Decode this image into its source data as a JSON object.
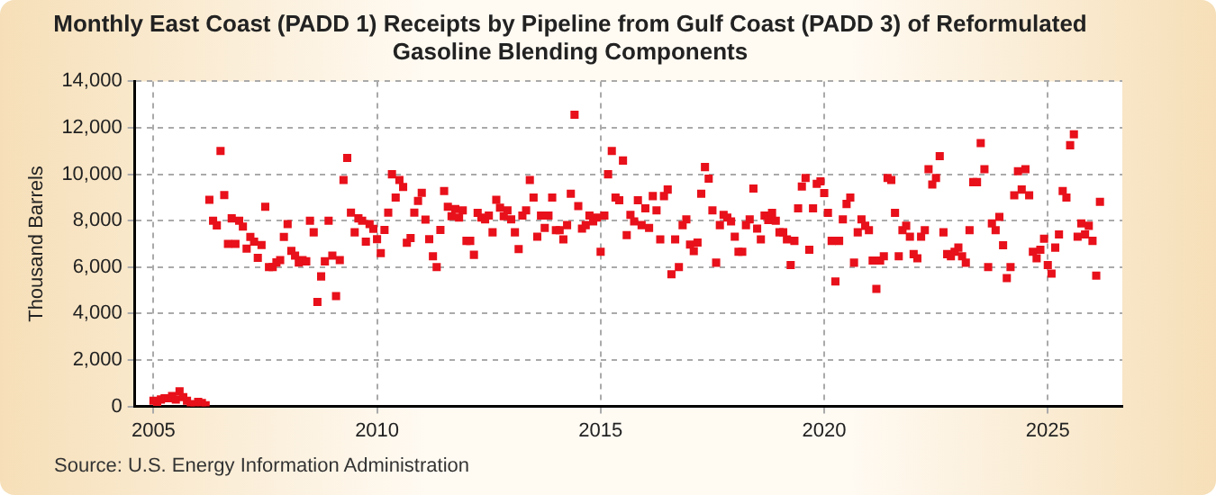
{
  "chart_data": {
    "type": "scatter",
    "title": "Monthly East Coast (PADD 1) Receipts by Pipeline from Gulf Coast (PADD 3) of Reformulated Gasoline Blending Components",
    "ylabel": "Thousand Barrels",
    "annotations": [
      "Source: U.S. Energy Information Administration"
    ],
    "xlim": [
      "2004-08",
      "2026-09"
    ],
    "xticks": [
      "2005",
      "2010",
      "2015",
      "2020",
      "2025"
    ],
    "ylim": [
      0,
      14000
    ],
    "yticks": [
      0,
      {
        "value": 2000,
        "label": "2,000"
      },
      {
        "value": 4000,
        "label": "4,000"
      },
      {
        "value": 6000,
        "label": "6,000"
      },
      {
        "value": 8000,
        "label": "8,000"
      },
      {
        "value": 10000,
        "label": "10,000"
      },
      {
        "value": 12000,
        "label": "12,000"
      },
      {
        "value": 14000,
        "label": "14,000"
      }
    ],
    "grid": true,
    "legend": false,
    "marker": "square",
    "series": [
      {
        "color": "#e8101a",
        "x": [
          "2005-01",
          "2005-02",
          "2005-03",
          "2005-04",
          "2005-05",
          "2005-06",
          "2005-07",
          "2005-08",
          "2005-09",
          "2005-10",
          "2005-11",
          "2005-12",
          "2006-01",
          "2006-02",
          "2006-03",
          "2006-04",
          "2006-05",
          "2006-06",
          "2006-07",
          "2006-08",
          "2006-09",
          "2006-10",
          "2006-11",
          "2006-12",
          "2007-01",
          "2007-02",
          "2007-03",
          "2007-04",
          "2007-05",
          "2007-06",
          "2007-07",
          "2007-08",
          "2007-09",
          "2007-10",
          "2007-11",
          "2007-12",
          "2008-01",
          "2008-02",
          "2008-03",
          "2008-04",
          "2008-05",
          "2008-06",
          "2008-07",
          "2008-08",
          "2008-09",
          "2008-10",
          "2008-11",
          "2008-12",
          "2009-01",
          "2009-02",
          "2009-03",
          "2009-04",
          "2009-05",
          "2009-06",
          "2009-07",
          "2009-08",
          "2009-09",
          "2009-10",
          "2009-11",
          "2009-12",
          "2010-01",
          "2010-02",
          "2010-03",
          "2010-04",
          "2010-05",
          "2010-06",
          "2010-07",
          "2010-08",
          "2010-09",
          "2010-10",
          "2010-11",
          "2010-12",
          "2011-01",
          "2011-02",
          "2011-03",
          "2011-04",
          "2011-05",
          "2011-06",
          "2011-07",
          "2011-08",
          "2011-09",
          "2011-10",
          "2011-11",
          "2011-12",
          "2012-01",
          "2012-02",
          "2012-03",
          "2012-04",
          "2012-05",
          "2012-06",
          "2012-07",
          "2012-08",
          "2012-09",
          "2012-10",
          "2012-11",
          "2012-12",
          "2013-01",
          "2013-02",
          "2013-03",
          "2013-04",
          "2013-05",
          "2013-06",
          "2013-07",
          "2013-08",
          "2013-09",
          "2013-10",
          "2013-11",
          "2013-12",
          "2014-01",
          "2014-02",
          "2014-03",
          "2014-04",
          "2014-05",
          "2014-06",
          "2014-07",
          "2014-08",
          "2014-09",
          "2014-10",
          "2014-11",
          "2014-12",
          "2015-01",
          "2015-02",
          "2015-03",
          "2015-04",
          "2015-05",
          "2015-06",
          "2015-07",
          "2015-08",
          "2015-09",
          "2015-10",
          "2015-11",
          "2015-12",
          "2016-01",
          "2016-02",
          "2016-03",
          "2016-04",
          "2016-05",
          "2016-06",
          "2016-07",
          "2016-08",
          "2016-09",
          "2016-10",
          "2016-11",
          "2016-12",
          "2017-01",
          "2017-02",
          "2017-03",
          "2017-04",
          "2017-05",
          "2017-06",
          "2017-07",
          "2017-08",
          "2017-09",
          "2017-10",
          "2017-11",
          "2017-12",
          "2018-01",
          "2018-02",
          "2018-03",
          "2018-04",
          "2018-05",
          "2018-06",
          "2018-07",
          "2018-08",
          "2018-09",
          "2018-10",
          "2018-11",
          "2018-12",
          "2019-01",
          "2019-02",
          "2019-03",
          "2019-04",
          "2019-05",
          "2019-06",
          "2019-07",
          "2019-08",
          "2019-09",
          "2019-10",
          "2019-11",
          "2019-12",
          "2020-01",
          "2020-02",
          "2020-03",
          "2020-04",
          "2020-05",
          "2020-06",
          "2020-07",
          "2020-08",
          "2020-09",
          "2020-10",
          "2020-11",
          "2020-12",
          "2021-01",
          "2021-02",
          "2021-03",
          "2021-04",
          "2021-05",
          "2021-06",
          "2021-07",
          "2021-08",
          "2021-09",
          "2021-10",
          "2021-11",
          "2021-12",
          "2022-01",
          "2022-02",
          "2022-03",
          "2022-04",
          "2022-05",
          "2022-06",
          "2022-07",
          "2022-08",
          "2022-09",
          "2022-10",
          "2022-11",
          "2022-12",
          "2023-01",
          "2023-02",
          "2023-03",
          "2023-04",
          "2023-05",
          "2023-06",
          "2023-07",
          "2023-08",
          "2023-09",
          "2023-10",
          "2023-11",
          "2023-12",
          "2024-01",
          "2024-02",
          "2024-03",
          "2024-04",
          "2024-05",
          "2024-06",
          "2024-07",
          "2024-08",
          "2024-09",
          "2024-10",
          "2024-11",
          "2024-12",
          "2025-01",
          "2025-02",
          "2025-03",
          "2025-04",
          "2025-05",
          "2025-06",
          "2025-07",
          "2025-08",
          "2025-09",
          "2025-10",
          "2025-11",
          "2025-12",
          "2026-01",
          "2026-02",
          "2026-03"
        ],
        "values": [
          250,
          200,
          300,
          350,
          350,
          450,
          300,
          650,
          400,
          250,
          100,
          0,
          200,
          150,
          50,
          8900,
          8000,
          7800,
          11000,
          9100,
          7000,
          8100,
          7000,
          8000,
          7750,
          6800,
          7300,
          7100,
          6400,
          6950,
          8600,
          6000,
          6000,
          6200,
          6300,
          7300,
          7850,
          6700,
          6500,
          6200,
          6300,
          6250,
          8000,
          7500,
          4500,
          5600,
          6250,
          8000,
          6500,
          4750,
          6300,
          9750,
          10700,
          8350,
          7500,
          8100,
          8000,
          7100,
          7850,
          7650,
          7200,
          6600,
          7600,
          8350,
          10000,
          9000,
          9750,
          9450,
          7050,
          7250,
          8350,
          8850,
          9200,
          8050,
          7200,
          6470,
          6000,
          7600,
          9280,
          8600,
          8190,
          8500,
          8130,
          8440,
          7130,
          7130,
          6530,
          8340,
          8130,
          8060,
          8220,
          7500,
          8900,
          8560,
          8190,
          8440,
          8060,
          7500,
          6780,
          8220,
          8440,
          9750,
          9000,
          7310,
          8220,
          7690,
          8220,
          9000,
          7590,
          7590,
          7190,
          7810,
          9160,
          12560,
          8630,
          7660,
          7810,
          8220,
          7970,
          8130,
          6660,
          8220,
          10000,
          11000,
          9000,
          8880,
          10590,
          7380,
          8250,
          7970,
          8880,
          7810,
          8530,
          7690,
          9060,
          8440,
          7190,
          9060,
          9340,
          5690,
          7190,
          6000,
          7810,
          8060,
          6970,
          6690,
          7060,
          9160,
          10310,
          9810,
          8440,
          6190,
          7810,
          8250,
          8130,
          7970,
          7310,
          6660,
          6660,
          7810,
          8060,
          9380,
          7660,
          7190,
          8220,
          8030,
          8340,
          8000,
          7500,
          7500,
          7190,
          6090,
          7130,
          8530,
          9470,
          9840,
          6750,
          8530,
          9590,
          9690,
          9190,
          8340,
          7130,
          5380,
          7130,
          8060,
          8720,
          9000,
          6190,
          7500,
          8060,
          7780,
          7590,
          6280,
          5060,
          6280,
          6470,
          9840,
          9750,
          8340,
          6470,
          7590,
          7780,
          7310,
          6560,
          6380,
          7310,
          7590,
          10220,
          9560,
          9840,
          10780,
          7500,
          6560,
          6470,
          6660,
          6840,
          6470,
          6190,
          7590,
          9660,
          9660,
          11340,
          10220,
          6000,
          7880,
          7590,
          8160,
          6940,
          5530,
          6000,
          9090,
          10130,
          9340,
          10220,
          9090,
          6660,
          6380,
          6750,
          7220,
          6090,
          5720,
          6840,
          7410,
          9280,
          9000,
          11250,
          11720,
          7310,
          7880,
          7410,
          7780,
          7130,
          5630,
          8810
        ]
      }
    ]
  }
}
